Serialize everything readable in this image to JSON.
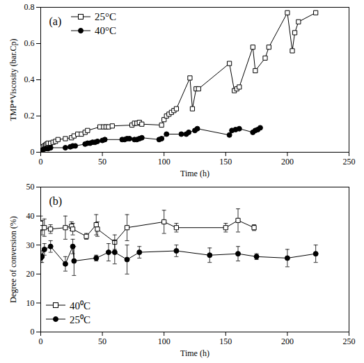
{
  "chart_data": [
    {
      "type": "line",
      "annotation": "(a)",
      "x_label": "Time (h)",
      "y_label": "TMP*Viscosity (bar.Cp)",
      "xlim": [
        0,
        250
      ],
      "xticks": [
        0,
        50,
        100,
        150,
        200,
        250
      ],
      "ylim": [
        0,
        0.8
      ],
      "yticks": [
        0,
        0.2,
        0.4,
        0.6,
        0.8
      ],
      "grid": false,
      "legend": "upper left",
      "series": [
        {
          "name": "25°C",
          "color": "#000000",
          "marker": "square",
          "x": [
            0,
            1,
            2,
            3,
            4,
            5,
            6,
            8,
            10,
            12,
            14,
            20,
            25,
            27,
            30,
            33,
            36,
            38,
            48,
            51,
            53,
            55,
            58,
            74,
            76,
            78,
            80,
            82,
            98,
            100,
            102,
            104,
            106,
            108,
            110,
            121,
            123,
            126,
            128,
            153,
            157,
            159,
            161,
            172,
            174,
            182,
            185,
            200,
            204,
            206,
            209,
            223
          ],
          "values": [
            0.02,
            0.025,
            0.03,
            0.035,
            0.04,
            0.045,
            0.05,
            0.05,
            0.055,
            0.06,
            0.07,
            0.075,
            0.08,
            0.09,
            0.1,
            0.1,
            0.11,
            0.12,
            0.14,
            0.14,
            0.14,
            0.14,
            0.145,
            0.15,
            0.16,
            0.16,
            0.165,
            0.155,
            0.15,
            0.18,
            0.2,
            0.21,
            0.22,
            0.23,
            0.24,
            0.41,
            0.24,
            0.35,
            0.35,
            0.49,
            0.34,
            0.35,
            0.36,
            0.58,
            0.45,
            0.52,
            0.58,
            0.77,
            0.56,
            0.66,
            0.72,
            0.77
          ]
        },
        {
          "name": "40°C",
          "color": "#000000",
          "marker": "circle",
          "x": [
            0,
            2,
            4,
            6,
            8,
            20,
            24,
            26,
            28,
            36,
            38,
            40,
            42,
            44,
            46,
            50,
            52,
            66,
            68,
            70,
            72,
            76,
            78,
            80,
            82,
            96,
            98,
            102,
            114,
            118,
            120,
            125,
            127,
            153,
            155,
            158,
            161,
            172,
            174,
            176,
            178
          ],
          "values": [
            0.01,
            0.015,
            0.02,
            0.02,
            0.025,
            0.025,
            0.03,
            0.035,
            0.035,
            0.045,
            0.05,
            0.05,
            0.055,
            0.055,
            0.06,
            0.065,
            0.07,
            0.07,
            0.07,
            0.075,
            0.075,
            0.07,
            0.07,
            0.075,
            0.08,
            0.07,
            0.075,
            0.1,
            0.1,
            0.1,
            0.11,
            0.12,
            0.13,
            0.095,
            0.12,
            0.125,
            0.13,
            0.11,
            0.12,
            0.125,
            0.135
          ]
        }
      ]
    },
    {
      "type": "line",
      "annotation": "(b)",
      "x_label": "Time (h)",
      "y_label": "Degree of conversion (%)",
      "xlim": [
        0,
        250
      ],
      "xticks": [
        0,
        50,
        100,
        150,
        200,
        250
      ],
      "ylim": [
        0,
        50
      ],
      "yticks": [
        0,
        10,
        20,
        30,
        40,
        50
      ],
      "grid": false,
      "legend": "lower left",
      "series": [
        {
          "name": "40⁰C",
          "color": "#000000",
          "marker": "square",
          "x": [
            0,
            1,
            3,
            8,
            20,
            25,
            26,
            37,
            45,
            46,
            60,
            70,
            100,
            110,
            150,
            160,
            173
          ],
          "values": [
            37.5,
            36,
            36,
            35.5,
            36,
            36.5,
            35.5,
            33,
            37,
            35.5,
            31,
            36,
            38,
            36,
            36,
            38.5,
            36
          ],
          "errors": [
            2.5,
            2.5,
            3,
            1.5,
            4,
            1.5,
            2,
            1,
            3.5,
            2.5,
            2.5,
            4.5,
            4,
            1.5,
            1.5,
            4,
            1
          ]
        },
        {
          "name": "25⁰C",
          "color": "#000000",
          "marker": "circle",
          "x": [
            0,
            1,
            3,
            8,
            20,
            26,
            27,
            45,
            55,
            60,
            70,
            80,
            110,
            137,
            160,
            175,
            200,
            223
          ],
          "values": [
            25.5,
            26,
            28.5,
            29.5,
            23.5,
            29.5,
            24.5,
            25.5,
            27.5,
            27.5,
            25,
            27.5,
            28,
            26.5,
            27,
            26,
            25.5,
            27
          ],
          "errors": [
            1.5,
            2,
            2,
            2,
            2.5,
            2.5,
            5,
            1,
            3,
            4,
            5,
            2,
            2,
            2.5,
            2.5,
            1,
            3,
            3
          ]
        }
      ]
    }
  ]
}
